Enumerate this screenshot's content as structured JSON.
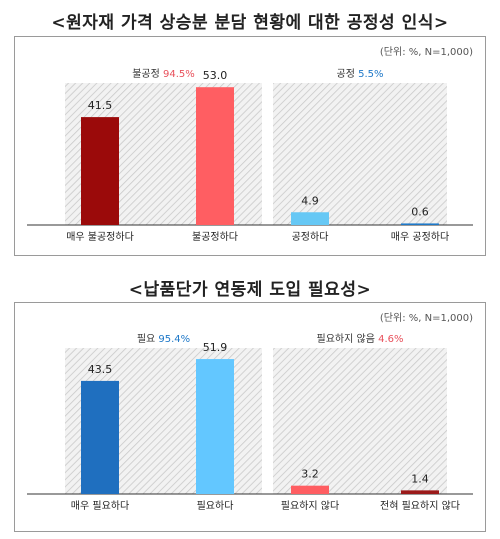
{
  "chart_data": [
    {
      "type": "bar",
      "title": "<원자재 가격 상승분 분담 현황에 대한 공정성 인식>",
      "unit_note": "(단위: %, N=1,000)",
      "ylim": [
        0,
        60
      ],
      "groups": [
        {
          "label": "불공정",
          "pct": "94.5%",
          "pct_color": "#e8505b",
          "range": [
            0,
            1
          ]
        },
        {
          "label": "공정",
          "pct": "5.5%",
          "pct_color": "#1e78c8",
          "range": [
            2,
            3
          ]
        }
      ],
      "categories": [
        "매우 불공정하다",
        "불공정하다",
        "공정하다",
        "매우 공정하다"
      ],
      "values": [
        41.5,
        53.0,
        4.9,
        0.6
      ],
      "value_labels": [
        "41.5",
        "53.0",
        "4.9",
        "0.6"
      ],
      "colors": [
        "#9b0a0a",
        "#ff5e62",
        "#66c8f5",
        "#1e78c8"
      ]
    },
    {
      "type": "bar",
      "title": "<납품단가 연동제 도입 필요성>",
      "unit_note": "(단위: %, N=1,000)",
      "ylim": [
        0,
        60
      ],
      "groups": [
        {
          "label": "필요",
          "pct": "95.4%",
          "pct_color": "#1e78c8",
          "range": [
            0,
            1
          ]
        },
        {
          "label": "필요하지 않음",
          "pct": "4.6%",
          "pct_color": "#e8505b",
          "range": [
            2,
            3
          ]
        }
      ],
      "categories": [
        "매우 필요하다",
        "필요하다",
        "필요하지 않다",
        "전혀 필요하지 않다"
      ],
      "values": [
        43.5,
        51.9,
        3.2,
        1.4
      ],
      "value_labels": [
        "43.5",
        "51.9",
        "3.2",
        "1.4"
      ],
      "colors": [
        "#1f6fbf",
        "#63c7ff",
        "#ff5e62",
        "#9b1a1a"
      ]
    }
  ]
}
